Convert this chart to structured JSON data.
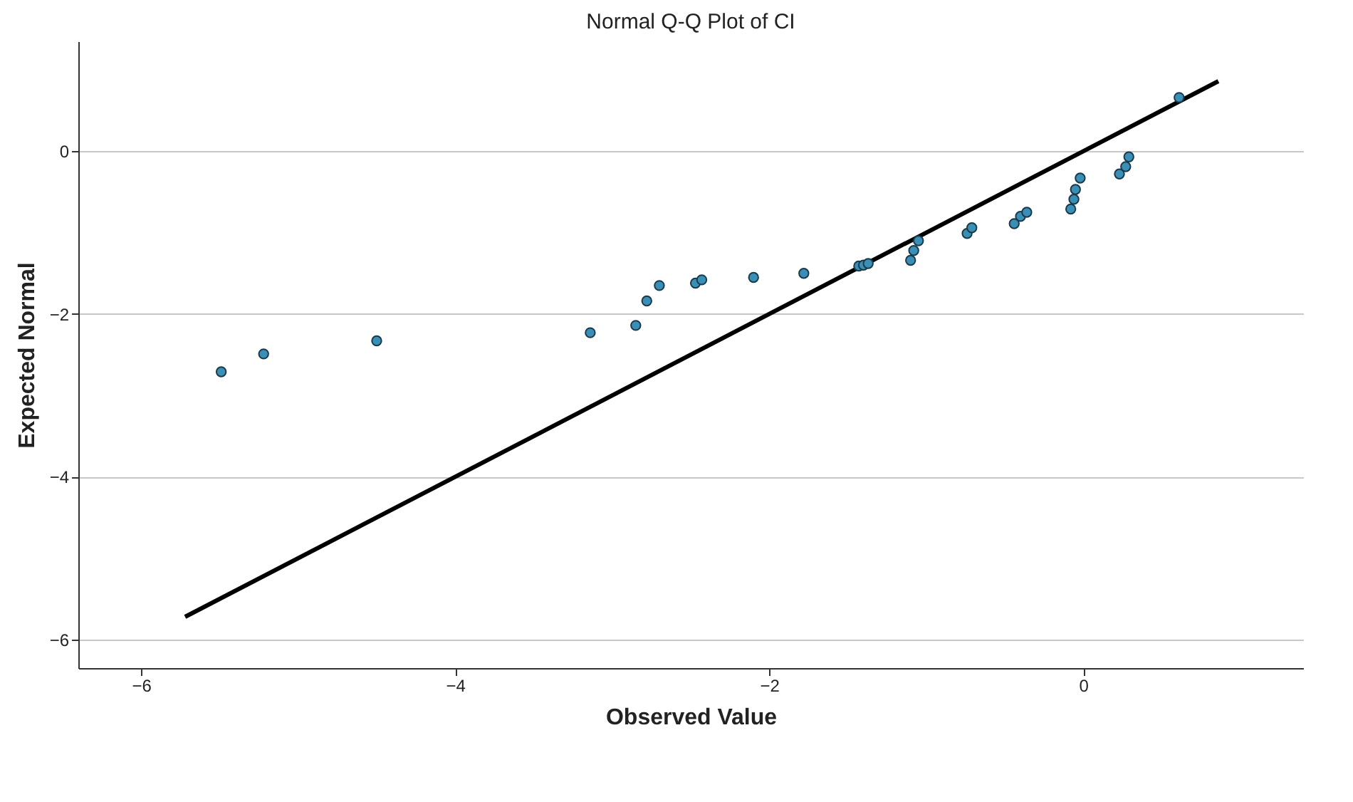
{
  "chart_data": {
    "type": "scatter",
    "title": "Normal Q-Q Plot of CI",
    "xlabel": "Observed Value",
    "ylabel": "Expected Normal",
    "xlim": [
      -6.4,
      1.4
    ],
    "ylim": [
      -6.35,
      1.35
    ],
    "xticks": [
      -6,
      -4,
      -2,
      0
    ],
    "yticks": [
      -6,
      -4,
      -2,
      0
    ],
    "grid": "y",
    "series": [
      {
        "marker": "circle",
        "color": "#3a8fb7",
        "x": [
          -5.49,
          -5.22,
          -4.5,
          -3.14,
          -2.85,
          -2.78,
          -2.7,
          -2.47,
          -2.43,
          -2.1,
          -1.78,
          -1.43,
          -1.4,
          -1.37,
          -1.1,
          -1.08,
          -1.05,
          -0.74,
          -0.71,
          -0.44,
          -0.4,
          -0.36,
          -0.08,
          -0.06,
          -0.05,
          -0.02,
          0.23,
          0.27,
          0.29,
          0.61
        ],
        "values": [
          -2.71,
          -2.49,
          -2.33,
          -2.23,
          -2.14,
          -1.84,
          -1.65,
          -1.62,
          -1.58,
          -1.55,
          -1.5,
          -1.41,
          -1.4,
          -1.38,
          -1.34,
          -1.22,
          -1.1,
          -1.01,
          -0.94,
          -0.89,
          -0.8,
          -0.75,
          -0.71,
          -0.59,
          -0.47,
          -0.33,
          -0.28,
          -0.19,
          -0.07,
          0.66
        ]
      },
      {
        "type": "line",
        "color": "#000000",
        "x": [
          -5.72,
          0.86
        ],
        "values": [
          -5.72,
          0.86
        ]
      }
    ]
  }
}
